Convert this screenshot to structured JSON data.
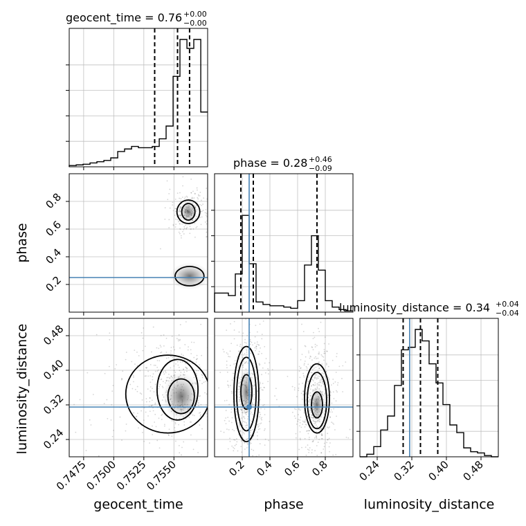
{
  "chart_data": {
    "type": "corner",
    "parameters": [
      "geocent_time",
      "phase",
      "luminosity_distance"
    ],
    "truths": {
      "geocent_time": null,
      "phase": 0.25,
      "luminosity_distance": 0.315
    },
    "colors": {
      "truth": "#4682b4",
      "line": "#000000",
      "grid": "#c0c0c0"
    },
    "titles": [
      {
        "param": "geocent_time",
        "median": "0.76",
        "plus": "+0.00",
        "minus": "−0.00"
      },
      {
        "param": "phase",
        "median": "0.28",
        "plus": "+0.46",
        "minus": "−0.09"
      },
      {
        "param": "luminosity_distance",
        "median": "0.34",
        "plus": "+0.04",
        "minus": "−0.04"
      }
    ],
    "axes": {
      "geocent_time": {
        "range": [
          0.7463,
          0.7578
        ],
        "ticks": [
          0.7475,
          0.75,
          0.7525,
          0.755
        ],
        "ticklabels": [
          "0.7475",
          "0.7500",
          "0.7525",
          "0.7550"
        ],
        "label": "geocent_time"
      },
      "phase": {
        "range": [
          0.0,
          1.0
        ],
        "ticks": [
          0.2,
          0.4,
          0.6,
          0.8
        ],
        "ticklabels": [
          "0.2",
          "0.4",
          "0.6",
          "0.8"
        ],
        "label": "phase"
      },
      "luminosity_distance": {
        "range": [
          0.2,
          0.52
        ],
        "ticks": [
          0.24,
          0.32,
          0.4,
          0.48
        ],
        "ticklabels": [
          "0.24",
          "0.32",
          "0.40",
          "0.48"
        ],
        "label": "luminosity_distance"
      }
    },
    "histograms": {
      "geocent_time": {
        "bin_edges": [
          0.7463,
          0.74688,
          0.74745,
          0.74803,
          0.7486,
          0.74918,
          0.74975,
          0.75033,
          0.7509,
          0.75148,
          0.75205,
          0.75263,
          0.7532,
          0.75378,
          0.75435,
          0.75493,
          0.7555,
          0.75608,
          0.75665,
          0.75723,
          0.7578
        ],
        "heights": [
          0.01,
          0.015,
          0.02,
          0.03,
          0.04,
          0.05,
          0.07,
          0.12,
          0.14,
          0.16,
          0.15,
          0.15,
          0.16,
          0.22,
          0.32,
          0.71,
          1.0,
          0.93,
          1.0,
          0.43
        ],
        "quantile_lines": [
          0.7534,
          0.7553,
          0.7563
        ]
      },
      "phase": {
        "bin_edges": [
          0.0,
          0.05,
          0.1,
          0.15,
          0.2,
          0.25,
          0.3,
          0.35,
          0.4,
          0.45,
          0.5,
          0.55,
          0.6,
          0.65,
          0.7,
          0.75,
          0.8,
          0.85,
          0.9,
          0.95,
          1.0
        ],
        "heights": [
          0.15,
          0.15,
          0.13,
          0.3,
          0.76,
          0.38,
          0.08,
          0.06,
          0.05,
          0.05,
          0.04,
          0.03,
          0.09,
          0.37,
          0.6,
          0.33,
          0.09,
          0.04,
          0.02,
          0.01
        ],
        "quantile_lines": [
          0.19,
          0.28,
          0.74
        ]
      },
      "luminosity_distance": {
        "bin_edges": [
          0.2,
          0.216,
          0.232,
          0.248,
          0.264,
          0.28,
          0.296,
          0.312,
          0.328,
          0.344,
          0.36,
          0.376,
          0.392,
          0.408,
          0.424,
          0.44,
          0.456,
          0.472,
          0.488,
          0.504,
          0.52
        ],
        "heights": [
          0.0,
          0.02,
          0.08,
          0.21,
          0.32,
          0.56,
          0.84,
          0.86,
          1.0,
          0.91,
          0.73,
          0.58,
          0.41,
          0.25,
          0.19,
          0.07,
          0.04,
          0.03,
          0.01,
          0.0
        ],
        "quantile_lines": [
          0.3,
          0.34,
          0.38
        ]
      }
    },
    "contours_2d": {
      "phase_vs_geocent_time": [
        {
          "center": [
            0.7562,
            0.725
          ],
          "radii": [
            0.00055,
            0.06
          ],
          "level": 1
        },
        {
          "center": [
            0.7562,
            0.725
          ],
          "radii": [
            0.00095,
            0.085
          ],
          "level": 2
        },
        {
          "center": [
            0.7563,
            0.26
          ],
          "radii": [
            0.0012,
            0.07
          ],
          "level": 1
        }
      ],
      "ld_vs_geocent_time": [
        {
          "center": [
            0.7556,
            0.34
          ],
          "radii": [
            0.0011,
            0.04
          ],
          "level": 1
        },
        {
          "center": [
            0.7553,
            0.355
          ],
          "radii": [
            0.0017,
            0.07
          ],
          "level": 2
        },
        {
          "center": [
            0.7545,
            0.345
          ],
          "radii": [
            0.0035,
            0.09
          ],
          "level": 3
        }
      ],
      "ld_vs_phase": [
        {
          "center": [
            0.23,
            0.35
          ],
          "radii": [
            0.04,
            0.04
          ],
          "level": 1
        },
        {
          "center": [
            0.23,
            0.345
          ],
          "radii": [
            0.07,
            0.085
          ],
          "level": 2
        },
        {
          "center": [
            0.23,
            0.345
          ],
          "radii": [
            0.09,
            0.11
          ],
          "level": 3
        },
        {
          "center": [
            0.74,
            0.32
          ],
          "radii": [
            0.04,
            0.03
          ],
          "level": 1
        },
        {
          "center": [
            0.74,
            0.33
          ],
          "radii": [
            0.07,
            0.065
          ],
          "level": 2
        },
        {
          "center": [
            0.74,
            0.335
          ],
          "radii": [
            0.09,
            0.08
          ],
          "level": 3
        }
      ]
    }
  }
}
